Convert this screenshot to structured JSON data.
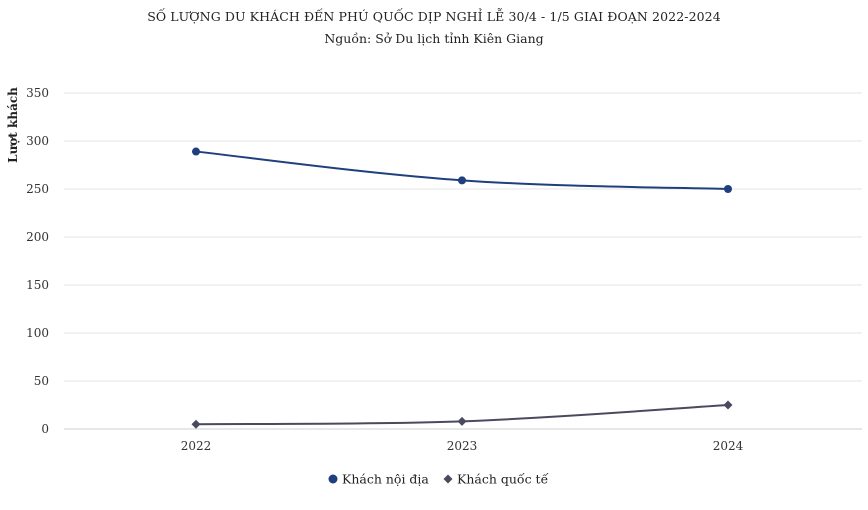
{
  "chart_data": {
    "type": "line",
    "title": "SỐ LƯỢNG DU KHÁCH ĐẾN PHÚ QUỐC DỊP NGHỈ LỄ 30/4 - 1/5 GIAI ĐOẠN 2022-2024",
    "subtitle": "Nguồn: Sở Du lịch tỉnh Kiên Giang",
    "ylabel": "Lượt khách",
    "xlabel": "",
    "categories": [
      "2022",
      "2023",
      "2024"
    ],
    "ylim": [
      0,
      350
    ],
    "yticks": [
      0,
      50,
      100,
      150,
      200,
      250,
      300,
      350
    ],
    "grid": true,
    "legend_position": "bottom",
    "series": [
      {
        "name": "Khách nội địa",
        "values": [
          289,
          259,
          250
        ],
        "color": "#1f3f7f",
        "marker": "circle"
      },
      {
        "name": "Khách quốc tế",
        "values": [
          5,
          8,
          25
        ],
        "color": "#4a4a5e",
        "marker": "diamond"
      }
    ]
  }
}
